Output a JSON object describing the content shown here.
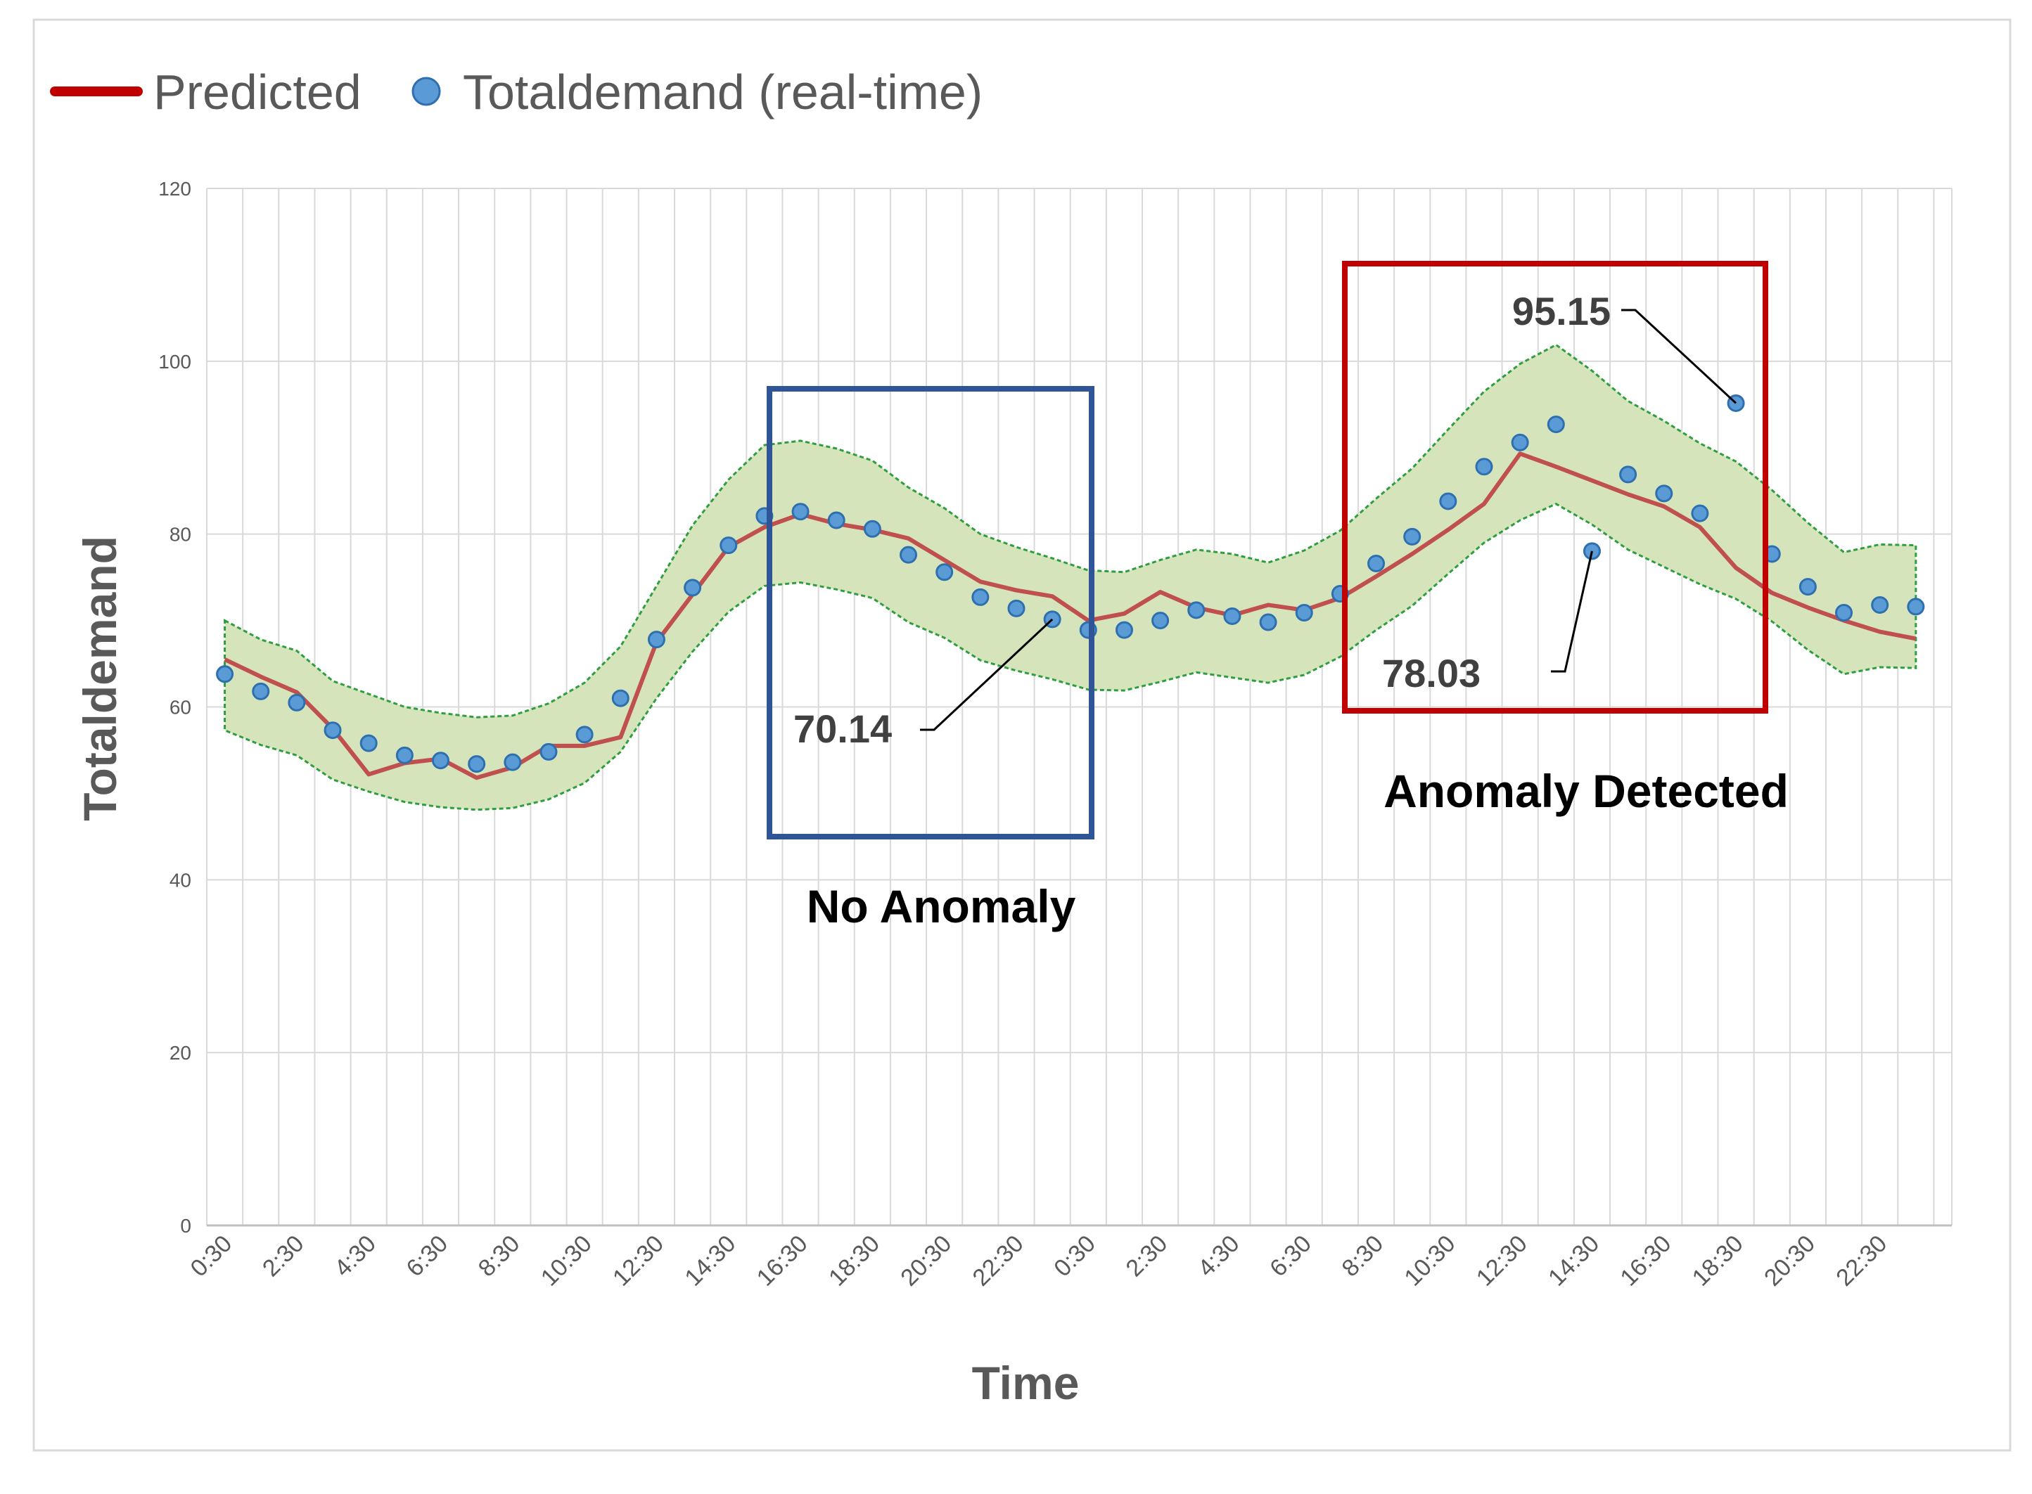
{
  "colors": {
    "predicted": "#c0504d",
    "realtime": "#5b9bd5",
    "realtime_edge": "#2e6fb0",
    "band_fill": "#d6e4bc",
    "band_edge": "#2e9e3e",
    "grid": "#d9d9d9",
    "no_anomaly_box": "#2f5597",
    "anomaly_box": "#c00000"
  },
  "legend": {
    "predicted": "Predicted",
    "realtime": "Totaldemand (real-time)"
  },
  "chart_data": {
    "type": "line",
    "title": "",
    "xlabel": "Time",
    "ylabel": "Totaldemand",
    "ylim": [
      0,
      120
    ],
    "yticks": [
      0,
      20,
      40,
      60,
      80,
      100,
      120
    ],
    "grid": true,
    "legend_position": "top-left",
    "x": [
      "0:30",
      "1:30",
      "2:30",
      "3:30",
      "4:30",
      "5:30",
      "6:30",
      "7:30",
      "8:30",
      "9:30",
      "10:30",
      "11:30",
      "12:30",
      "13:30",
      "14:30",
      "15:30",
      "16:30",
      "17:30",
      "18:30",
      "19:30",
      "20:30",
      "21:30",
      "22:30",
      "23:30",
      "0:30",
      "1:30",
      "2:30",
      "3:30",
      "4:30",
      "5:30",
      "6:30",
      "7:30",
      "8:30",
      "9:30",
      "10:30",
      "11:30",
      "12:30",
      "13:30",
      "14:30",
      "15:30",
      "16:30",
      "17:30",
      "18:30",
      "19:30",
      "20:30",
      "21:30",
      "22:30",
      "23:30"
    ],
    "x_tick_labels": [
      "0:30",
      "2:30",
      "4:30",
      "6:30",
      "8:30",
      "10:30",
      "12:30",
      "14:30",
      "16:30",
      "18:30",
      "20:30",
      "22:30",
      "0:30",
      "2:30",
      "4:30",
      "6:30",
      "8:30",
      "10:30",
      "12:30",
      "14:30",
      "16:30",
      "18:30",
      "20:30",
      "22:30"
    ],
    "series": [
      {
        "name": "Predicted",
        "kind": "line",
        "values": [
          65.5,
          63.5,
          61.7,
          57.5,
          52.2,
          53.5,
          54.0,
          51.8,
          53.0,
          55.5,
          55.5,
          56.5,
          67.5,
          73.0,
          78.5,
          80.8,
          82.3,
          81.2,
          80.5,
          79.5,
          77.0,
          74.5,
          73.5,
          72.8,
          70.0,
          70.8,
          73.3,
          71.5,
          70.6,
          71.8,
          71.2,
          72.6,
          75.1,
          77.7,
          80.5,
          83.5,
          89.3,
          87.8,
          86.2,
          84.6,
          83.2,
          80.8,
          76.1,
          73.2,
          71.5,
          70.0,
          68.7,
          67.9
        ]
      },
      {
        "name": "Totaldemand (real-time)",
        "kind": "scatter",
        "values": [
          63.8,
          61.8,
          60.5,
          57.3,
          55.8,
          54.4,
          53.8,
          53.4,
          53.6,
          54.8,
          56.8,
          61.0,
          67.8,
          73.8,
          78.7,
          82.1,
          82.6,
          81.6,
          80.6,
          77.6,
          75.6,
          72.7,
          71.4,
          70.14,
          68.9,
          68.9,
          70.0,
          71.2,
          70.5,
          69.8,
          70.9,
          73.1,
          76.6,
          79.7,
          83.8,
          87.8,
          90.6,
          92.7,
          78.03,
          86.9,
          84.7,
          82.4,
          95.15,
          77.7,
          73.9,
          70.9,
          71.8,
          71.6
        ]
      },
      {
        "name": "Upper bound",
        "kind": "band-upper",
        "values": [
          70.0,
          67.8,
          66.5,
          63.0,
          61.5,
          60.0,
          59.3,
          58.8,
          59.0,
          60.4,
          62.8,
          67.0,
          74.0,
          81.0,
          86.3,
          90.3,
          90.8,
          89.9,
          88.5,
          85.4,
          83.0,
          80.0,
          78.5,
          77.2,
          75.8,
          75.6,
          77.0,
          78.2,
          77.7,
          76.7,
          78.1,
          80.4,
          84.1,
          87.6,
          92.1,
          96.5,
          99.7,
          101.9,
          98.9,
          95.4,
          93.1,
          90.5,
          88.4,
          85.1,
          81.3,
          77.9,
          78.8,
          78.7
        ]
      },
      {
        "name": "Lower bound",
        "kind": "band-lower",
        "values": [
          57.3,
          55.6,
          54.4,
          51.6,
          50.2,
          49.0,
          48.4,
          48.1,
          48.3,
          49.3,
          51.2,
          54.8,
          61.0,
          66.4,
          71.0,
          74.0,
          74.4,
          73.6,
          72.6,
          69.8,
          68.0,
          65.4,
          64.2,
          63.2,
          62.0,
          61.9,
          62.9,
          64.0,
          63.4,
          62.8,
          63.7,
          65.8,
          68.9,
          71.7,
          75.4,
          79.0,
          81.6,
          83.5,
          81.1,
          78.2,
          76.2,
          74.2,
          72.5,
          69.9,
          66.6,
          63.8,
          64.6,
          64.5
        ]
      }
    ],
    "annotations": [
      {
        "label": "70.14",
        "point_index": 23
      },
      {
        "label": "95.15",
        "point_index": 42
      },
      {
        "label": "78.03",
        "point_index": 38
      }
    ],
    "regions": [
      {
        "label": "No Anomaly"
      },
      {
        "label": "Anomaly Detected"
      }
    ]
  }
}
